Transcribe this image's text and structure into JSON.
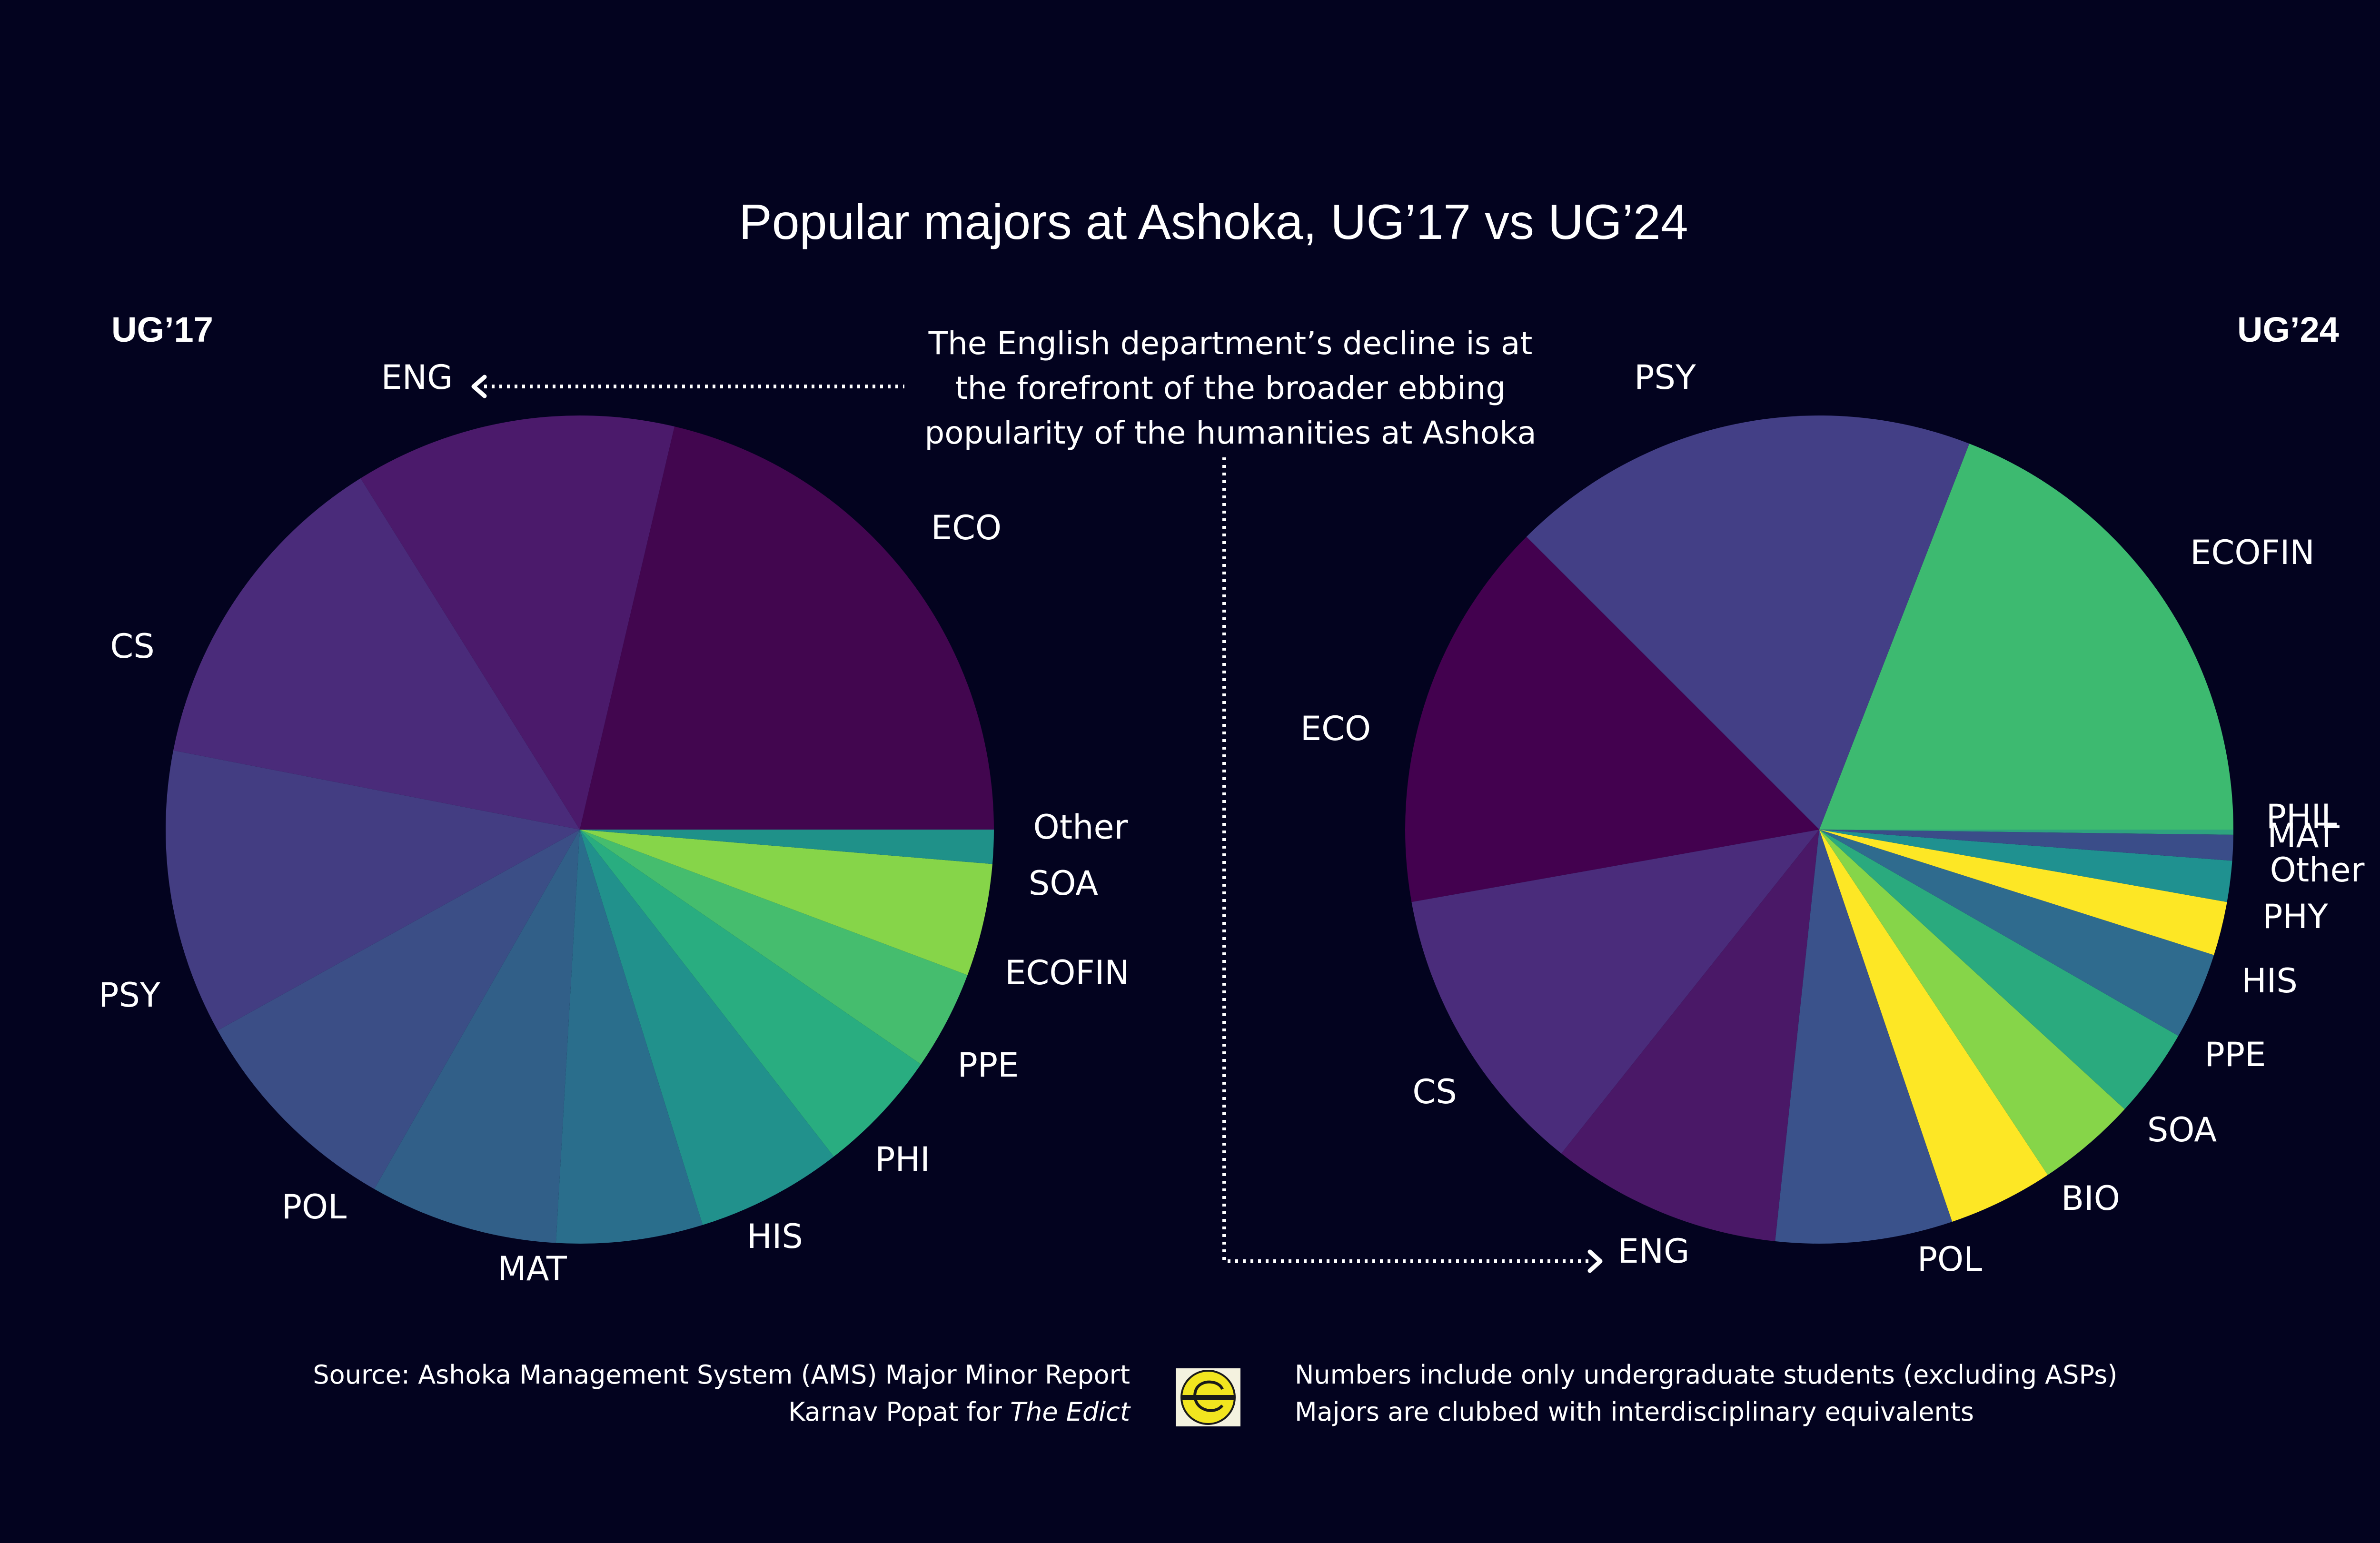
{
  "title": "Popular majors at Ashoka, UG’17 vs UG’24",
  "annotation": {
    "lines": [
      "The English department’s decline is at",
      "the forefront of the broader ebbing",
      "popularity of the humanities at Ashoka"
    ]
  },
  "footer": {
    "source_line": "Source: Ashoka Management System (AMS) Major Minor Report",
    "credit_prefix": "Karnav Popat for ",
    "credit_publication": "The Edict",
    "note_line_1": "Numbers include only undergraduate students (excluding ASPs)",
    "note_line_2": "Majors are clubbed with interdisciplinary equivalents"
  },
  "colors": {
    "background": "#03031f",
    "text": "#ffffff"
  },
  "chart_data": [
    {
      "type": "pie",
      "title": "UG’17",
      "slices": [
        {
          "label": "ECO",
          "value": 20.9,
          "color": "#42064f"
        },
        {
          "label": "ENG",
          "value": 12.3,
          "color": "#4b1a6b"
        },
        {
          "label": "CS",
          "value": 12.8,
          "color": "#4a2b7a"
        },
        {
          "label": "PSY",
          "value": 10.9,
          "color": "#433d82"
        },
        {
          "label": "POL",
          "value": 8.5,
          "color": "#3b4e86"
        },
        {
          "label": "MAT",
          "value": 7.2,
          "color": "#315f88"
        },
        {
          "label": "HIS",
          "value": 5.6,
          "color": "#2a6e8c"
        },
        {
          "label": "PHI",
          "value": 5.6,
          "color": "#21918c"
        },
        {
          "label": "PPE",
          "value": 4.8,
          "color": "#29ad80"
        },
        {
          "label": "ECOFIN",
          "value": 3.8,
          "color": "#45bd6e"
        },
        {
          "label": "SOA",
          "value": 4.3,
          "color": "#86d549"
        },
        {
          "label": "Other",
          "value": 1.3,
          "color": "#1f9189"
        }
      ]
    },
    {
      "type": "pie",
      "title": "UG’24",
      "slices": [
        {
          "label": "ECOFIN",
          "value": 19.1,
          "color": "#3dba70"
        },
        {
          "label": "PSY",
          "value": 18.4,
          "color": "#433f86"
        },
        {
          "label": "ECO",
          "value": 15.3,
          "color": "#43014f"
        },
        {
          "label": "CS",
          "value": 11.5,
          "color": "#4a2c7b"
        },
        {
          "label": "ENG",
          "value": 9.0,
          "color": "#4a1867"
        },
        {
          "label": "POL",
          "value": 6.9,
          "color": "#3a528b"
        },
        {
          "label": "BIO",
          "value": 4.1,
          "color": "#fde725"
        },
        {
          "label": "SOA",
          "value": 3.9,
          "color": "#86d549"
        },
        {
          "label": "PPE",
          "value": 3.5,
          "color": "#2aaa7e"
        },
        {
          "label": "HIS",
          "value": 3.4,
          "color": "#2f6b8e"
        },
        {
          "label": "PHY",
          "value": 2.1,
          "color": "#fde725"
        },
        {
          "label": "Other",
          "value": 1.6,
          "color": "#1f9190"
        },
        {
          "label": "MAT",
          "value": 1.0,
          "color": "#3a4d89"
        },
        {
          "label": "PHIL",
          "value": 0.2,
          "color": "#2ea37f"
        }
      ]
    }
  ]
}
